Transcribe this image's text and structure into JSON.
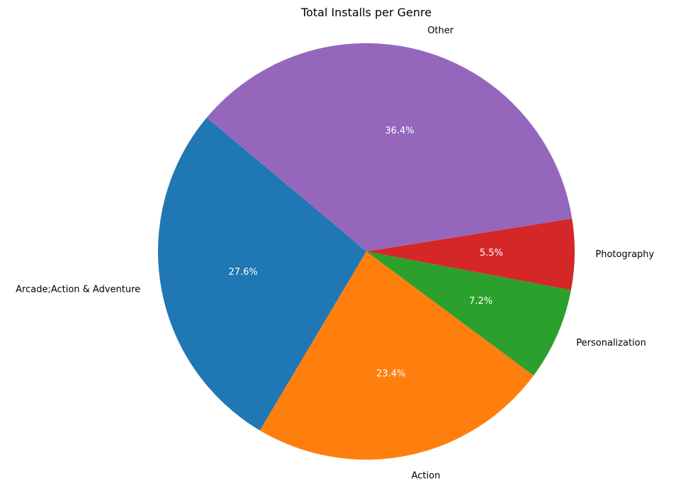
{
  "chart_data": {
    "type": "pie",
    "title": "Total Installs per Genre",
    "slices": [
      {
        "label": "Arcade;Action & Adventure",
        "percent": 27.6,
        "pct_label": "27.6%",
        "color": "#1f77b4"
      },
      {
        "label": "Action",
        "percent": 23.4,
        "pct_label": "23.4%",
        "color": "#ff7f0e"
      },
      {
        "label": "Personalization",
        "percent": 7.2,
        "pct_label": "7.2%",
        "color": "#2ca02c"
      },
      {
        "label": "Photography",
        "percent": 5.5,
        "pct_label": "5.5%",
        "color": "#d62728"
      },
      {
        "label": "Other",
        "percent": 36.4,
        "pct_label": "36.4%",
        "color": "#9467bd"
      }
    ],
    "start_angle_deg": 140,
    "direction": "counterclockwise"
  }
}
